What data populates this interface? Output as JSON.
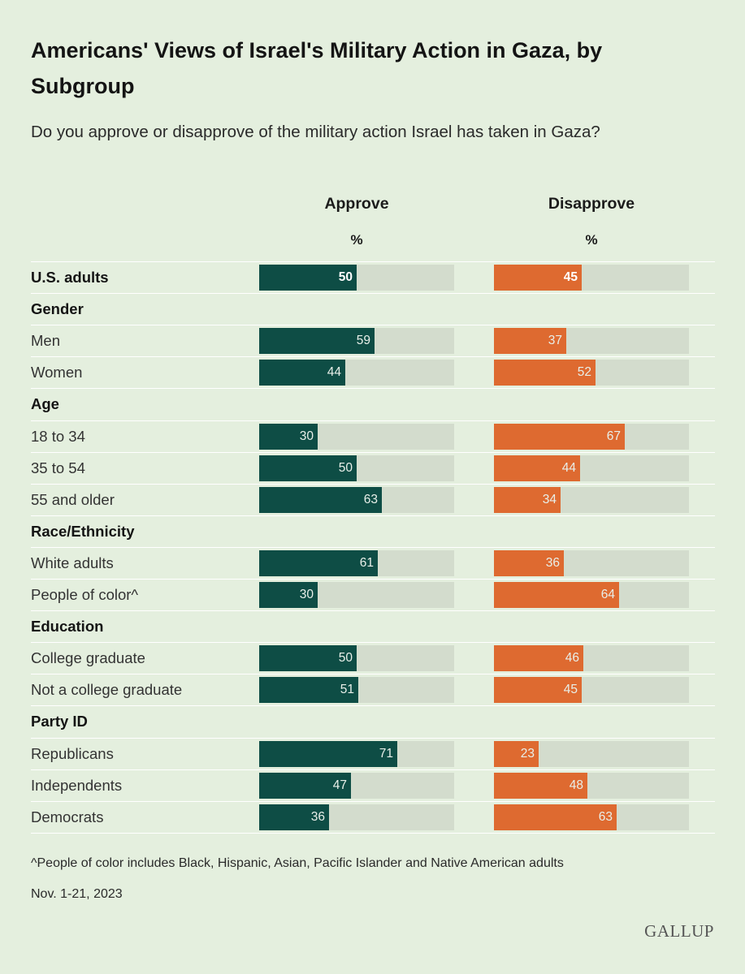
{
  "title": "Americans' Views of Israel's Military Action in Gaza, by Subgroup",
  "subtitle": "Do you approve or disapprove of the military action Israel has taken in Gaza?",
  "colors": {
    "approve": "#0e4d45",
    "disapprove": "#de6a30",
    "track": "#d3dccd",
    "background": "#e4efde"
  },
  "chart_data": {
    "type": "bar",
    "orientation": "horizontal",
    "range": [
      0,
      100
    ],
    "series": [
      {
        "name": "Approve",
        "unit": "%"
      },
      {
        "name": "Disapprove",
        "unit": "%"
      }
    ],
    "rows": [
      {
        "kind": "data",
        "label": "U.S. adults",
        "approve": 50,
        "disapprove": 45,
        "bold": true
      },
      {
        "kind": "group",
        "label": "Gender"
      },
      {
        "kind": "data",
        "label": "Men",
        "approve": 59,
        "disapprove": 37
      },
      {
        "kind": "data",
        "label": "Women",
        "approve": 44,
        "disapprove": 52
      },
      {
        "kind": "group",
        "label": "Age"
      },
      {
        "kind": "data",
        "label": "18 to 34",
        "approve": 30,
        "disapprove": 67
      },
      {
        "kind": "data",
        "label": "35 to 54",
        "approve": 50,
        "disapprove": 44
      },
      {
        "kind": "data",
        "label": "55 and older",
        "approve": 63,
        "disapprove": 34
      },
      {
        "kind": "group",
        "label": "Race/Ethnicity"
      },
      {
        "kind": "data",
        "label": "White adults",
        "approve": 61,
        "disapprove": 36
      },
      {
        "kind": "data",
        "label": "People of color^",
        "approve": 30,
        "disapprove": 64
      },
      {
        "kind": "group",
        "label": "Education"
      },
      {
        "kind": "data",
        "label": "College graduate",
        "approve": 50,
        "disapprove": 46
      },
      {
        "kind": "data",
        "label": "Not a college graduate",
        "approve": 51,
        "disapprove": 45
      },
      {
        "kind": "group",
        "label": "Party ID"
      },
      {
        "kind": "data",
        "label": "Republicans",
        "approve": 71,
        "disapprove": 23
      },
      {
        "kind": "data",
        "label": "Independents",
        "approve": 47,
        "disapprove": 48
      },
      {
        "kind": "data",
        "label": "Democrats",
        "approve": 36,
        "disapprove": 63
      }
    ]
  },
  "footnote": "^People of color includes Black, Hispanic, Asian, Pacific Islander and Native American adults",
  "date": "Nov. 1-21, 2023",
  "logo": "GALLUP"
}
